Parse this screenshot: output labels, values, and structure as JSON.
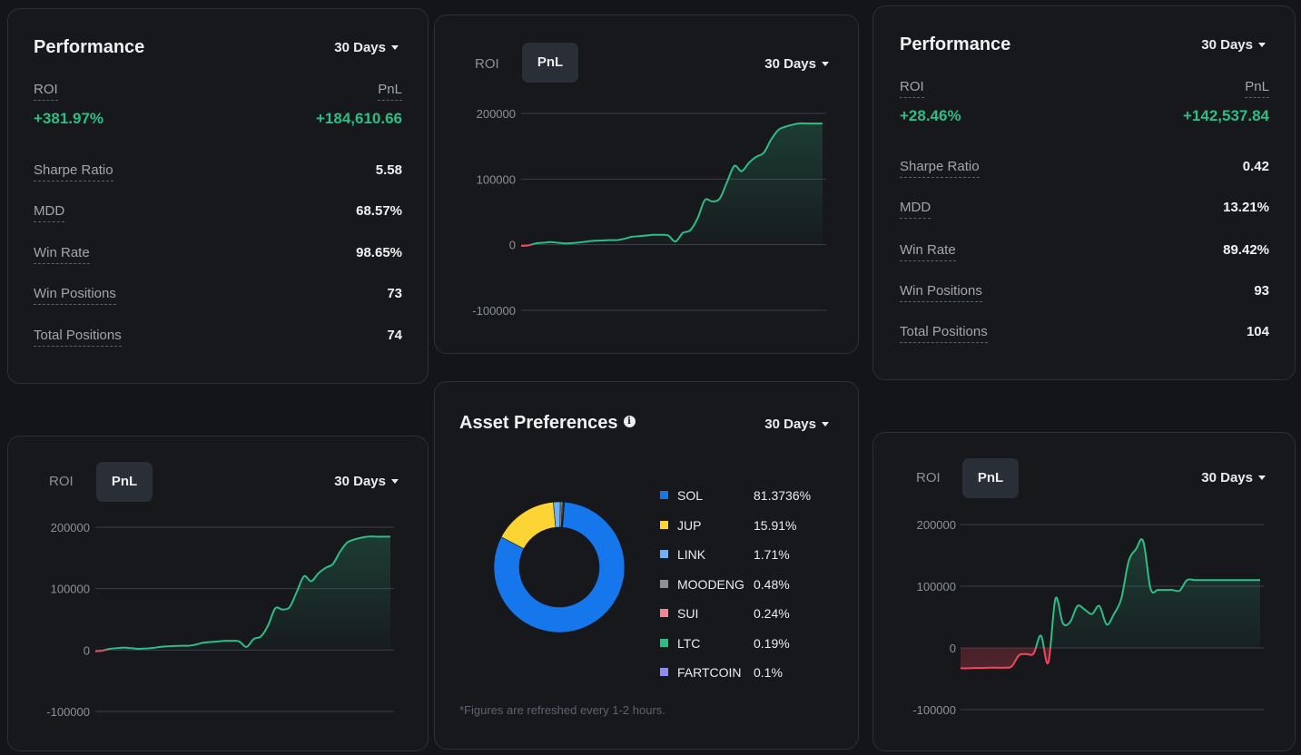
{
  "colors": {
    "green": "#2ebd85",
    "red": "#f6465d",
    "blue": "#1677ec",
    "yellow": "#fcd535"
  },
  "perf_left": {
    "title": "Performance",
    "period": "30 Days",
    "roi_label": "ROI",
    "pnl_label": "PnL",
    "roi": "+381.97%",
    "pnl": "+184,610.66",
    "stats": [
      {
        "label": "Sharpe Ratio",
        "value": "5.58"
      },
      {
        "label": "MDD",
        "value": "68.57%"
      },
      {
        "label": "Win Rate",
        "value": "98.65%"
      },
      {
        "label": "Win Positions",
        "value": "73"
      },
      {
        "label": "Total Positions",
        "value": "74"
      }
    ]
  },
  "perf_right": {
    "title": "Performance",
    "period": "30 Days",
    "roi_label": "ROI",
    "pnl_label": "PnL",
    "roi": "+28.46%",
    "pnl": "+142,537.84",
    "stats": [
      {
        "label": "Sharpe Ratio",
        "value": "0.42"
      },
      {
        "label": "MDD",
        "value": "13.21%"
      },
      {
        "label": "Win Rate",
        "value": "89.42%"
      },
      {
        "label": "Win Positions",
        "value": "93"
      },
      {
        "label": "Total Positions",
        "value": "104"
      }
    ]
  },
  "chart_top": {
    "tab_roi": "ROI",
    "tab_pnl": "PnL",
    "period": "30 Days"
  },
  "chart_bl": {
    "tab_roi": "ROI",
    "tab_pnl": "PnL",
    "period": "30 Days"
  },
  "chart_br": {
    "tab_roi": "ROI",
    "tab_pnl": "PnL",
    "period": "30 Days"
  },
  "assets": {
    "title": "Asset Preferences",
    "period": "30 Days",
    "note": "*Figures are refreshed every 1-2 hours."
  },
  "chart_data": [
    {
      "type": "area",
      "ylim": [
        -100000,
        200000
      ],
      "yticks": [
        200000,
        100000,
        0,
        -100000
      ],
      "x": [
        0,
        1,
        2,
        3,
        4,
        5,
        6,
        7,
        8,
        9,
        10,
        11,
        12,
        13,
        14,
        15,
        16,
        17,
        18,
        19,
        20,
        21,
        22,
        23,
        24,
        25,
        26,
        27,
        28,
        29,
        30,
        31,
        32,
        33,
        34,
        35,
        36,
        37,
        38,
        39,
        40,
        41
      ],
      "values": [
        -2000,
        -1000,
        2000,
        3000,
        4000,
        3000,
        2000,
        2500,
        3500,
        5000,
        6000,
        6500,
        7000,
        7000,
        9000,
        12000,
        13000,
        14000,
        15000,
        15000,
        14000,
        5000,
        18000,
        22000,
        40000,
        68000,
        66000,
        70000,
        95000,
        120000,
        112000,
        125000,
        134000,
        140000,
        160000,
        175000,
        180000,
        183000,
        185000,
        184610,
        184610,
        184610
      ]
    },
    {
      "type": "area",
      "ylim": [
        -100000,
        200000
      ],
      "yticks": [
        200000,
        100000,
        0,
        -100000
      ],
      "x": [
        0,
        1,
        2,
        3,
        4,
        5,
        6,
        7,
        8,
        9,
        10,
        11,
        12,
        13,
        14,
        15,
        16,
        17,
        18,
        19,
        20,
        21,
        22,
        23,
        24,
        25,
        26,
        27,
        28,
        29,
        30,
        31,
        32,
        33,
        34,
        35,
        36,
        37,
        38,
        39,
        40,
        41
      ],
      "values": [
        -2000,
        -1000,
        2000,
        3000,
        4000,
        3000,
        2000,
        2500,
        3500,
        5000,
        6000,
        6500,
        7000,
        7000,
        9000,
        12000,
        13000,
        14000,
        15000,
        15000,
        14000,
        5000,
        18000,
        22000,
        40000,
        68000,
        66000,
        70000,
        95000,
        120000,
        112000,
        125000,
        134000,
        140000,
        160000,
        175000,
        180000,
        183000,
        185000,
        184610,
        184610,
        184610
      ]
    },
    {
      "type": "area",
      "ylim": [
        -100000,
        200000
      ],
      "yticks": [
        200000,
        100000,
        0,
        -100000
      ],
      "x": [
        0,
        1,
        2,
        3,
        4,
        5,
        6,
        7,
        8,
        9,
        10,
        11,
        12,
        13,
        14,
        15,
        16,
        17,
        18,
        19,
        20,
        21,
        22,
        23,
        24,
        25,
        26,
        27,
        28,
        29,
        30,
        31,
        32,
        33,
        34,
        35,
        36,
        37,
        38,
        39,
        40,
        41
      ],
      "values": [
        -33000,
        -33000,
        -32500,
        -32500,
        -32000,
        -32000,
        -32000,
        -30000,
        -12000,
        -10000,
        -9000,
        20000,
        -24000,
        80000,
        40000,
        42000,
        68000,
        62000,
        55000,
        68000,
        38000,
        55000,
        80000,
        140000,
        160000,
        173000,
        96000,
        94000,
        94000,
        94000,
        93000,
        110000,
        110000,
        110000,
        110000,
        110000,
        110000,
        110000,
        110000,
        110000,
        110000,
        110000
      ]
    },
    {
      "type": "pie",
      "categories": [
        "SOL",
        "JUP",
        "LINK",
        "MOODENG",
        "SUI",
        "LTC",
        "FARTCOIN"
      ],
      "labels": [
        "81.3736%",
        "15.91%",
        "1.71%",
        "0.48%",
        "0.24%",
        "0.19%",
        "0.1%"
      ],
      "values": [
        81.3736,
        15.91,
        1.71,
        0.48,
        0.24,
        0.19,
        0.1
      ],
      "colors": [
        "#1677ec",
        "#fcd535",
        "#6ab4f5",
        "#8c9098",
        "#f6858f",
        "#2ebd85",
        "#8f8cf5"
      ]
    }
  ]
}
